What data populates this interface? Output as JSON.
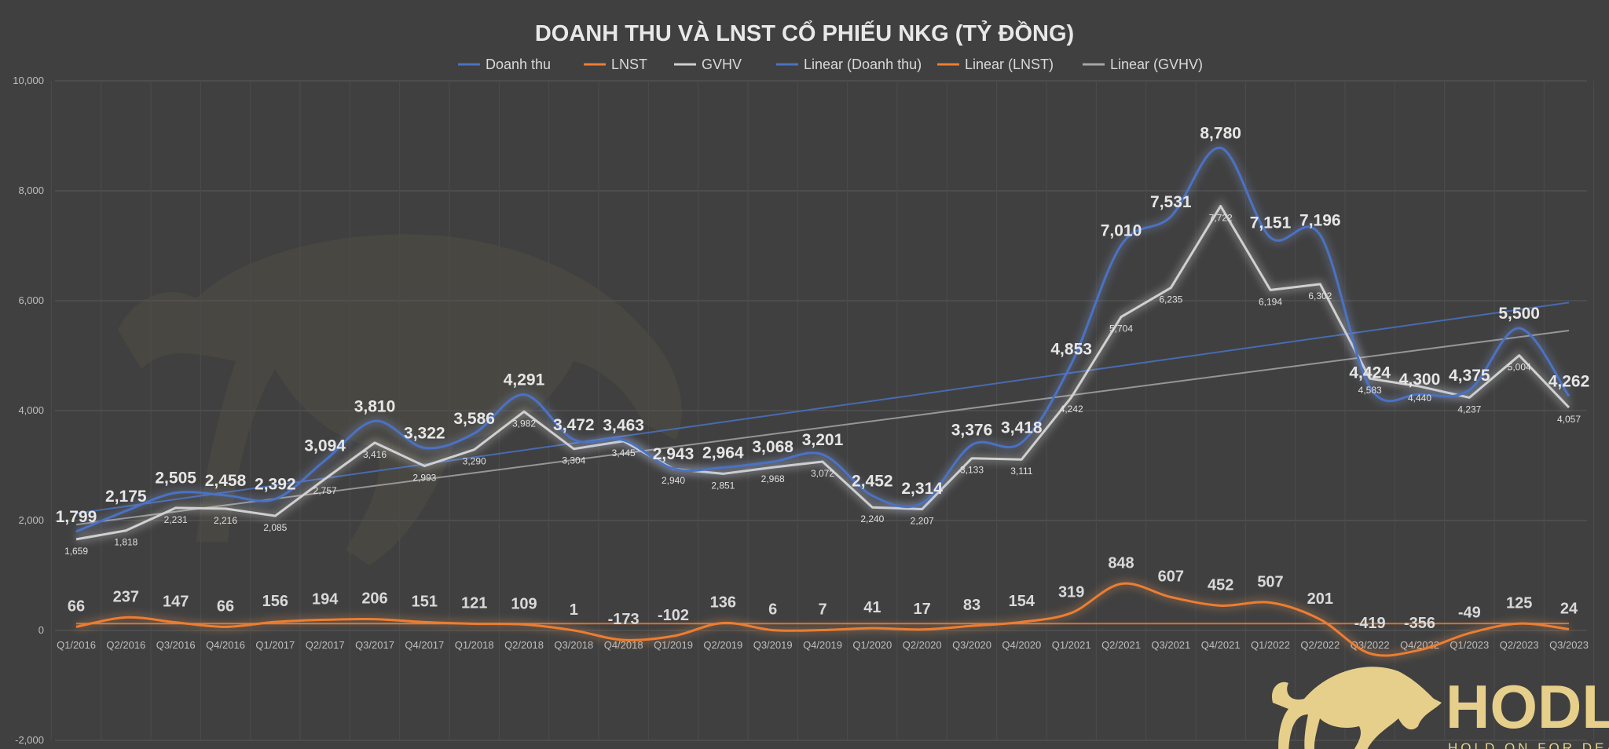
{
  "chart_data": {
    "type": "line",
    "title": "DOANH THU VÀ LNST CỔ PHIẾU NKG (TỶ ĐỒNG)",
    "categories": [
      "Q1/2016",
      "Q2/2016",
      "Q3/2016",
      "Q4/2016",
      "Q1/2017",
      "Q2/2017",
      "Q3/2017",
      "Q4/2017",
      "Q1/2018",
      "Q2/2018",
      "Q3/2018",
      "Q4/2018",
      "Q1/2019",
      "Q2/2019",
      "Q3/2019",
      "Q4/2019",
      "Q1/2020",
      "Q2/2020",
      "Q3/2020",
      "Q4/2020",
      "Q1/2021",
      "Q2/2021",
      "Q3/2021",
      "Q4/2021",
      "Q1/2022",
      "Q2/2022",
      "Q3/2022",
      "Q4/2022",
      "Q1/2023",
      "Q2/2023",
      "Q3/2023"
    ],
    "series": [
      {
        "name": "Doanh thu",
        "color": "#4a72c4",
        "smooth": true,
        "values": [
          1799,
          2175,
          2505,
          2458,
          2392,
          3094,
          3810,
          3322,
          3586,
          4291,
          3472,
          3463,
          2943,
          2964,
          3068,
          3201,
          2452,
          2314,
          3376,
          3418,
          4853,
          7010,
          7531,
          8780,
          7151,
          7196,
          4424,
          4300,
          4375,
          5500,
          4262
        ]
      },
      {
        "name": "LNST",
        "color": "#ed7d31",
        "smooth": true,
        "values": [
          66,
          237,
          147,
          66,
          156,
          194,
          206,
          151,
          121,
          109,
          1,
          -173,
          -102,
          136,
          6,
          7,
          41,
          17,
          83,
          154,
          319,
          848,
          607,
          452,
          507,
          201,
          -419,
          -356,
          -49,
          125,
          24
        ]
      },
      {
        "name": "GVHV",
        "color": "#d0d0d0",
        "smooth": false,
        "values": [
          1659,
          1818,
          2231,
          2216,
          2085,
          2757,
          3416,
          2993,
          3290,
          3982,
          3304,
          3445,
          2940,
          2851,
          2968,
          3072,
          2240,
          2207,
          3133,
          3111,
          4242,
          5704,
          6235,
          7722,
          6194,
          6302,
          4583,
          4440,
          4237,
          5004,
          4057
        ]
      }
    ],
    "trendlines": [
      {
        "name": "Linear (Doanh thu)",
        "of": "Doanh thu",
        "color": "#4a72c4"
      },
      {
        "name": "Linear (LNST)",
        "of": "LNST",
        "color": "#ed7d31"
      },
      {
        "name": "Linear (GVHV)",
        "of": "GVHV",
        "color": "#a6a6a6"
      }
    ],
    "ylim": [
      -2000,
      10000
    ],
    "yticks": [
      "-2,000",
      "0",
      "2,000",
      "4,000",
      "6,000",
      "8,000",
      "10,000"
    ],
    "ytick_values": [
      -2000,
      0,
      2000,
      4000,
      6000,
      8000,
      10000
    ],
    "grid": true,
    "legend": "top",
    "xlabel": "",
    "ylabel": ""
  },
  "watermark": {
    "brand": "HODL.VN",
    "tagline": "HOLD ON FOR DEAR LIFE"
  },
  "logo": {
    "brand": "HODL.VN",
    "tagline": "HOLD ON FOR DEAR LIFE",
    "color": "#e6cf8a"
  }
}
